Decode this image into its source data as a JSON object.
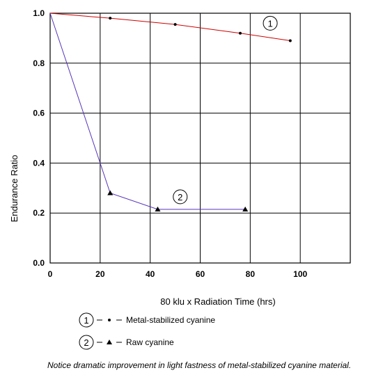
{
  "chart_data": {
    "type": "line",
    "xlabel": "80 klu x Radiation Time (hrs)",
    "ylabel": "Endurance Ratio",
    "xlim": [
      0,
      120
    ],
    "ylim": [
      0,
      1.0
    ],
    "x_ticks": [
      "0",
      "20",
      "40",
      "60",
      "80",
      "100"
    ],
    "y_ticks": [
      "0.0",
      "0.2",
      "0.4",
      "0.6",
      "0.8",
      "1.0"
    ],
    "grid": true,
    "series": [
      {
        "label": "1",
        "legend_text": "Metal-stabilized cyanine",
        "color": "#cc0000",
        "marker": "dot",
        "x": [
          0,
          24,
          50,
          76,
          96
        ],
        "y": [
          1.0,
          0.98,
          0.955,
          0.92,
          0.89
        ],
        "label_at": [
          88,
          0.96
        ]
      },
      {
        "label": "2",
        "legend_text": "Raw cyanine",
        "color": "#5533bb",
        "marker": "triangle",
        "x": [
          0,
          24,
          43,
          78
        ],
        "y": [
          1.0,
          0.28,
          0.215,
          0.215
        ],
        "label_at": [
          52,
          0.265
        ]
      }
    ]
  },
  "legend": {
    "items": [
      {
        "number": "1",
        "text": "Metal-stabilized cyanine"
      },
      {
        "number": "2",
        "text": "Raw cyanine"
      }
    ]
  },
  "note": "Notice dramatic improvement in light fastness of metal-stabilized cyanine material."
}
